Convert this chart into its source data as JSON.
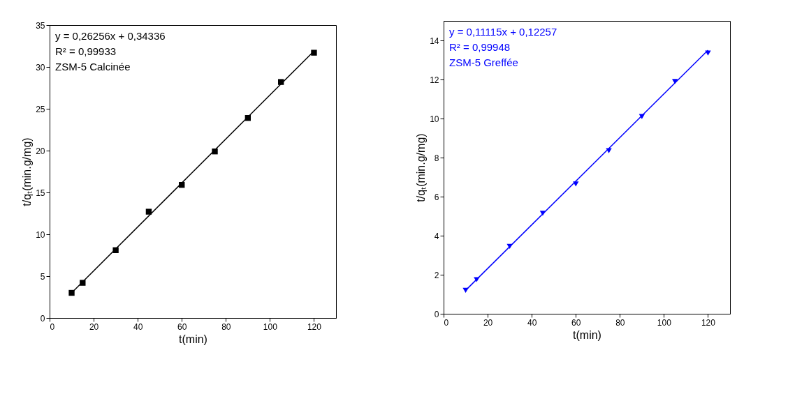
{
  "chart_data": [
    {
      "type": "scatter",
      "xlabel": "t(min)",
      "ylabel": "t/qₜ(min.g/mg)",
      "xlim": [
        0,
        130
      ],
      "xticks": [
        0,
        20,
        40,
        60,
        80,
        100,
        120
      ],
      "ylim": [
        0,
        35
      ],
      "yticks": [
        0,
        5,
        10,
        15,
        20,
        25,
        30,
        35
      ],
      "annotations": [
        "y = 0,26256x + 0,34336",
        "R² = 0,99933",
        "ZSM-5 Calcinée"
      ],
      "series": [
        {
          "marker": "square",
          "color": "#000000",
          "x": [
            10,
            15,
            30,
            45,
            60,
            75,
            90,
            105,
            120
          ],
          "values": [
            3.0,
            4.2,
            8.1,
            12.7,
            15.9,
            19.9,
            23.9,
            28.2,
            31.7
          ]
        },
        {
          "type": "line",
          "color": "#000000",
          "x": [
            10,
            120
          ],
          "values": [
            3.0,
            31.9
          ]
        }
      ]
    },
    {
      "type": "scatter",
      "xlabel": "t(min)",
      "ylabel": "t/qₜ(min.g/mg)",
      "xlim": [
        0,
        130
      ],
      "xticks": [
        0,
        20,
        40,
        60,
        80,
        100,
        120
      ],
      "ylim": [
        0,
        15
      ],
      "yticks": [
        0,
        2,
        4,
        6,
        8,
        10,
        12,
        14
      ],
      "annotations": [
        "y = 0,11115x + 0,12257",
        "R² = 0,99948",
        "ZSM-5 Greffée"
      ],
      "series": [
        {
          "marker": "triangle",
          "color": "#0000ff",
          "x": [
            10,
            15,
            30,
            45,
            60,
            75,
            90,
            105,
            120
          ],
          "values": [
            1.2,
            1.75,
            3.45,
            5.15,
            6.65,
            8.35,
            10.1,
            11.9,
            13.35
          ]
        },
        {
          "type": "line",
          "color": "#0000ff",
          "x": [
            10,
            120
          ],
          "values": [
            1.2,
            13.5
          ]
        }
      ]
    }
  ]
}
